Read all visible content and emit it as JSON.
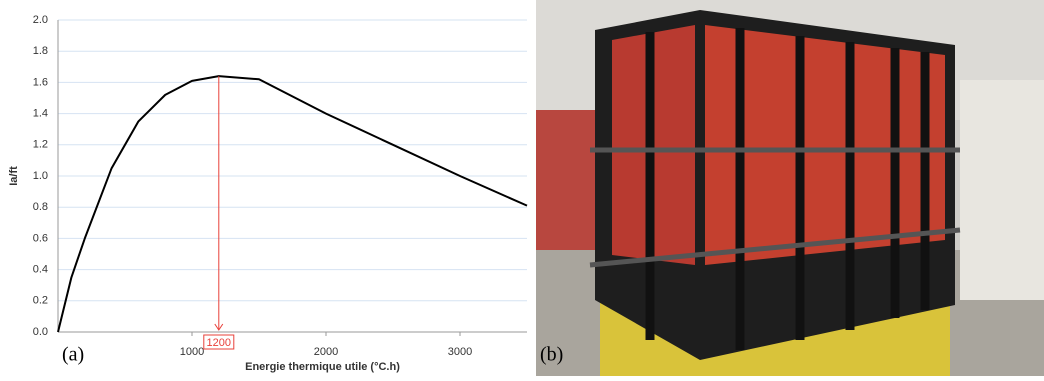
{
  "chart_data": {
    "type": "line",
    "x_label": "Energie thermique utile (°C.h)",
    "y_label": "Ia/ft",
    "x": [
      0,
      100,
      200,
      400,
      600,
      800,
      1000,
      1200,
      1500,
      2000,
      2500,
      3000,
      3500
    ],
    "series": [
      {
        "name": "Ia/ft",
        "color": "#000000",
        "values": [
          0,
          0.35,
          0.6,
          1.05,
          1.35,
          1.52,
          1.61,
          1.64,
          1.62,
          1.4,
          1.2,
          1.0,
          0.81
        ]
      }
    ],
    "xlim": [
      0,
      3500
    ],
    "xticks": [
      1000,
      2000,
      3000
    ],
    "ylim": [
      0,
      2.0
    ],
    "yticks": [
      {
        "value": 0,
        "label": "0.0"
      },
      0.2,
      0.4,
      0.6,
      0.8,
      {
        "value": 1,
        "label": "1.0"
      },
      1.2,
      1.4,
      1.6,
      1.8,
      {
        "value": 2,
        "label": "2.0"
      }
    ],
    "grid": true,
    "annotation_x": 1200,
    "annotation_color": "#e8403a"
  },
  "panel_labels": [
    "(a)",
    "(b)"
  ]
}
